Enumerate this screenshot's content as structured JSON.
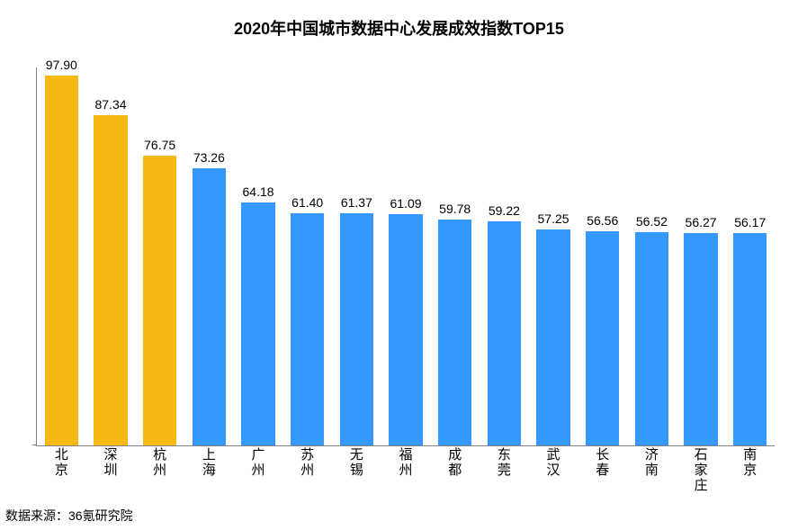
{
  "chart": {
    "type": "bar",
    "title": "2020年中国城市数据中心发展成效指数TOP15",
    "title_fontsize": 18,
    "source_label": "数据来源：36氪研究院",
    "source_fontsize": 14,
    "background_color": "#ffffff",
    "axis_color": "#808080",
    "ylim": [
      0,
      100
    ],
    "bar_width_ratio": 0.68,
    "value_label_fontsize": 14,
    "x_label_fontsize": 15,
    "colors": {
      "highlight": "#f6b913",
      "normal": "#3399ff"
    },
    "categories": [
      "北京",
      "深圳",
      "杭州",
      "上海",
      "广州",
      "苏州",
      "无锡",
      "福州",
      "成都",
      "东莞",
      "武汉",
      "长春",
      "济南",
      "石家庄",
      "南京"
    ],
    "values": [
      97.9,
      87.34,
      76.75,
      73.26,
      64.18,
      61.4,
      61.37,
      61.09,
      59.78,
      59.22,
      57.25,
      56.56,
      56.52,
      56.27,
      56.17
    ],
    "value_labels": [
      "97.90",
      "87.34",
      "76.75",
      "73.26",
      "64.18",
      "61.40",
      "61.37",
      "61.09",
      "59.78",
      "59.22",
      "57.25",
      "56.56",
      "56.52",
      "56.27",
      "56.17"
    ],
    "bar_colors": [
      "#f6b913",
      "#f6b913",
      "#f6b913",
      "#3399ff",
      "#3399ff",
      "#3399ff",
      "#3399ff",
      "#3399ff",
      "#3399ff",
      "#3399ff",
      "#3399ff",
      "#3399ff",
      "#3399ff",
      "#3399ff",
      "#3399ff"
    ]
  }
}
